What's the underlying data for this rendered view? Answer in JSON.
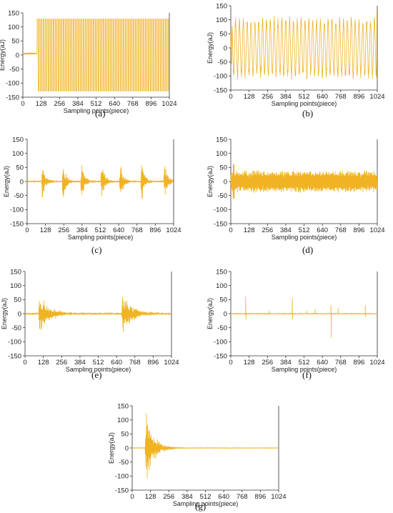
{
  "style": {
    "line_color": "#F0B323",
    "axis_color": "#333333"
  },
  "chart_data": [
    {
      "id": "a",
      "panel_label": "(a)",
      "type": "line",
      "xlabel": "Sampling points(piece)",
      "ylabel": "Energy(aJ)",
      "xlim": [
        0,
        1024
      ],
      "ylim": [
        -150,
        150
      ],
      "xticks": [
        "0",
        "128",
        "256",
        "384",
        "512",
        "640",
        "768",
        "896",
        "1024"
      ],
      "yticks": [
        "150",
        "100",
        "50",
        "0",
        "-50",
        "-100",
        "-150"
      ],
      "series": [
        {
          "pattern": "saturated-square",
          "start": 0,
          "pre_level": 5,
          "jump_at": 100,
          "high": 128,
          "low": -128,
          "period": 14
        }
      ]
    },
    {
      "id": "b",
      "panel_label": "(b)",
      "type": "line",
      "xlabel": "Sampling points(piece)",
      "ylabel": "Energy(aJ)",
      "xlim": [
        0,
        1024
      ],
      "ylim": [
        -150,
        150
      ],
      "xticks": [
        "0",
        "128",
        "256",
        "384",
        "512",
        "640",
        "768",
        "896",
        "1024"
      ],
      "yticks": [
        "150",
        "100",
        "50",
        "0",
        "-50",
        "-100",
        "-150"
      ],
      "series": [
        {
          "pattern": "sinusoid",
          "amplitude": 95,
          "cycles": 38,
          "start_amp_min": 60,
          "end_spike": 130
        }
      ]
    },
    {
      "id": "c",
      "panel_label": "(c)",
      "type": "line",
      "xlabel": "Sampling points(piece)",
      "ylabel": "Energy(aJ)",
      "xlim": [
        0,
        1024
      ],
      "ylim": [
        -150,
        150
      ],
      "xticks": [
        "0",
        "128",
        "256",
        "384",
        "512",
        "640",
        "768",
        "896",
        "1024"
      ],
      "yticks": [
        "150",
        "100",
        "50",
        "0",
        "-50",
        "-100",
        "-150"
      ],
      "series": [
        {
          "pattern": "bursts",
          "centers": [
            105,
            250,
            380,
            520,
            650,
            800,
            960
          ],
          "peak": 80,
          "decay": 22,
          "noise": 5
        }
      ]
    },
    {
      "id": "d",
      "panel_label": "(d)",
      "type": "line",
      "xlabel": "Sampling points(piece)",
      "ylabel": "Energy(aJ)",
      "xlim": [
        0,
        1024
      ],
      "ylim": [
        -150,
        150
      ],
      "xticks": [
        "0",
        "128",
        "256",
        "384",
        "512",
        "640",
        "768",
        "896",
        "1024"
      ],
      "yticks": [
        "150",
        "100",
        "50",
        "0",
        "-50",
        "-100",
        "-150"
      ],
      "series": [
        {
          "pattern": "noise-band",
          "amplitude": 40,
          "initial_spike": 60
        }
      ]
    },
    {
      "id": "e",
      "panel_label": "(e)",
      "type": "line",
      "xlabel": "Sampling points(piece)",
      "ylabel": "Energy(aJ)",
      "xlim": [
        0,
        1024
      ],
      "ylim": [
        -150,
        150
      ],
      "xticks": [
        "0",
        "128",
        "256",
        "384",
        "512",
        "640",
        "768",
        "896",
        "1024"
      ],
      "yticks": [
        "150",
        "100",
        "50",
        "0",
        "-50",
        "-100",
        "-150"
      ],
      "series": [
        {
          "pattern": "bursts",
          "centers": [
            100,
            680
          ],
          "peak": 75,
          "decay": 70,
          "noise": 6
        }
      ]
    },
    {
      "id": "f",
      "panel_label": "(f)",
      "type": "line",
      "xlabel": "Sampling points(piece)",
      "ylabel": "Energy(aJ)",
      "xlim": [
        0,
        1024
      ],
      "ylim": [
        -150,
        150
      ],
      "xticks": [
        "0",
        "128",
        "256",
        "384",
        "512",
        "640",
        "768",
        "896",
        "1024"
      ],
      "yticks": [
        "150",
        "100",
        "50",
        "0",
        "-50",
        "-100",
        "-150"
      ],
      "series": [
        {
          "pattern": "sparse-spikes",
          "spikes": [
            [
              104,
              60
            ],
            [
              106,
              -20
            ],
            [
              270,
              10
            ],
            [
              430,
              55
            ],
            [
              432,
              -20
            ],
            [
              530,
              10
            ],
            [
              590,
              15
            ],
            [
              700,
              30
            ],
            [
              703,
              -85
            ],
            [
              750,
              20
            ],
            [
              940,
              30
            ],
            [
              943,
              -10
            ]
          ],
          "noise": 3
        }
      ]
    },
    {
      "id": "g",
      "panel_label": "(g)",
      "type": "line",
      "xlabel": "Sampling points(piece)",
      "ylabel": "Energy(aJ)",
      "xlim": [
        0,
        1024
      ],
      "ylim": [
        -150,
        150
      ],
      "xticks": [
        "0",
        "128",
        "256",
        "384",
        "512",
        "640",
        "768",
        "896",
        "1024"
      ],
      "yticks": [
        "150",
        "100",
        "50",
        "0",
        "-50",
        "-100",
        "-150"
      ],
      "series": [
        {
          "pattern": "bursts",
          "centers": [
            95
          ],
          "peak": 140,
          "decay": 55,
          "noise": 2
        }
      ]
    }
  ]
}
